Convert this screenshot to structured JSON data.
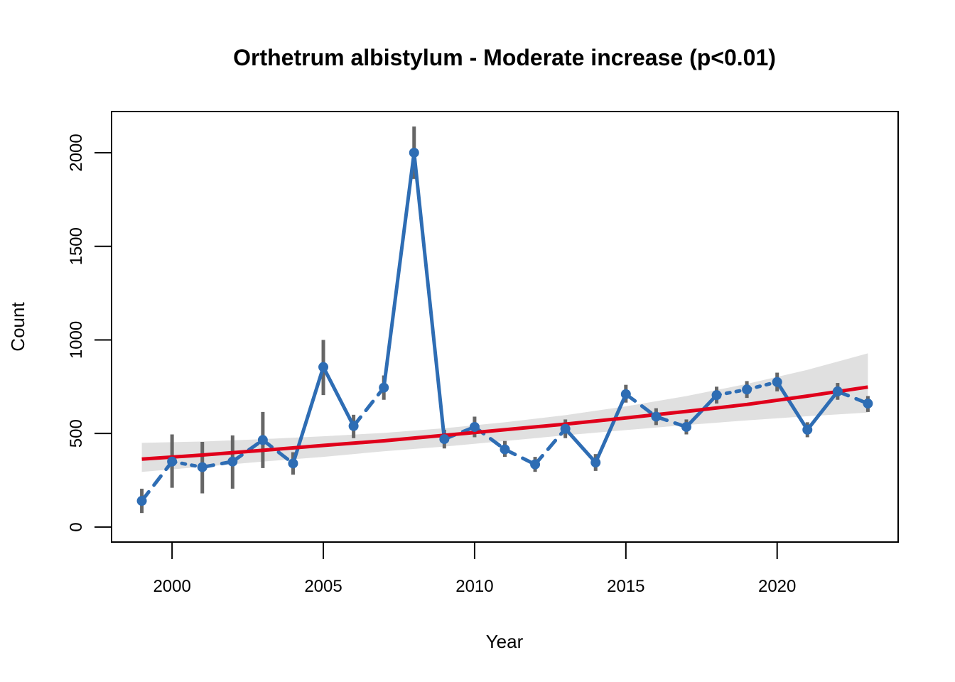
{
  "chart_data": {
    "type": "line",
    "title": "Orthetrum albistylum - Moderate increase (p<0.01)",
    "xlabel": "Year",
    "ylabel": "Count",
    "xlim": [
      1998,
      2024
    ],
    "ylim": [
      -80,
      2220
    ],
    "x_ticks": [
      2000,
      2005,
      2010,
      2015,
      2020
    ],
    "y_ticks": [
      0,
      500,
      1000,
      1500,
      2000
    ],
    "grid": false,
    "legend": "none",
    "colors": {
      "observed": "#2E6DB4",
      "error_bar": "#666666",
      "trend": "#E0001B",
      "ci_band": "#E0E0E0"
    },
    "series": [
      {
        "type": "points-with-error-bars",
        "x": [
          1999,
          2000,
          2001,
          2002,
          2003,
          2004,
          2005,
          2006,
          2007,
          2008,
          2009,
          2010,
          2011,
          2012,
          2013,
          2014,
          2015,
          2016,
          2017,
          2018,
          2019,
          2020,
          2021,
          2022,
          2023
        ],
        "y": [
          140,
          350,
          320,
          350,
          465,
          340,
          855,
          540,
          745,
          2000,
          470,
          535,
          415,
          335,
          525,
          345,
          710,
          590,
          535,
          705,
          735,
          775,
          520,
          725,
          660
        ],
        "err_low": [
          75,
          210,
          180,
          205,
          315,
          280,
          705,
          475,
          680,
          1860,
          420,
          480,
          375,
          295,
          475,
          300,
          665,
          545,
          495,
          660,
          690,
          725,
          480,
          680,
          615
        ],
        "err_high": [
          205,
          495,
          455,
          490,
          615,
          400,
          1000,
          600,
          810,
          2140,
          520,
          590,
          460,
          375,
          575,
          390,
          760,
          635,
          575,
          750,
          780,
          825,
          560,
          770,
          700
        ],
        "segment_style": [
          "dashed",
          "dotted",
          "dashed",
          "dashed",
          "dashed",
          "solid",
          "solid",
          "dashed",
          "solid",
          "solid",
          "dashed",
          "dashed",
          "dashed",
          "dashed",
          "solid",
          "solid",
          "dashed",
          "dashed",
          "solid",
          "dotted",
          "dotted",
          "solid",
          "solid",
          "dashed"
        ]
      },
      {
        "type": "trend",
        "x": [
          1999,
          2001,
          2003,
          2005,
          2007,
          2009,
          2011,
          2013,
          2015,
          2017,
          2019,
          2021,
          2023
        ],
        "y": [
          363,
          385,
          410,
          436,
          461,
          490,
          520,
          550,
          583,
          618,
          655,
          700,
          748
        ],
        "ci_low": [
          295,
          322,
          350,
          375,
          405,
          430,
          460,
          490,
          518,
          545,
          570,
          592,
          612
        ],
        "ci_high": [
          450,
          457,
          470,
          485,
          503,
          528,
          560,
          598,
          645,
          700,
          765,
          840,
          928
        ]
      }
    ]
  }
}
